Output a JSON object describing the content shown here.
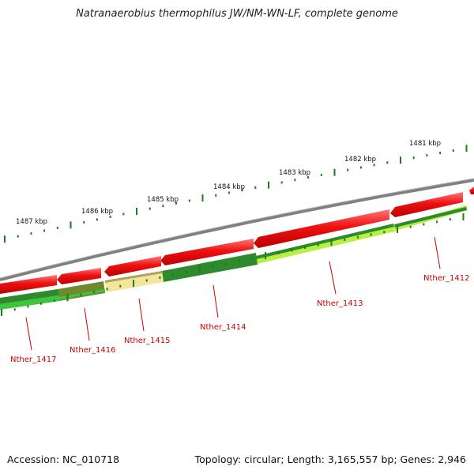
{
  "title": "Natranaerobius thermophilus JW/NM-WN-LF, complete genome",
  "footer": {
    "accession": "Accession: NC_010718",
    "stats": "Topology: circular; Length: 3,165,557 bp; Genes: 2,946"
  },
  "kbp_ticks": [
    "1481 kbp",
    "1482 kbp",
    "1483 kbp",
    "1484 kbp",
    "1485 kbp",
    "1486 kbp",
    "1487 kbp"
  ],
  "genes": [
    {
      "name": "Nther_1412",
      "strand": "reverse",
      "track_color": "#b8ef40"
    },
    {
      "name": "Nther_1413",
      "strand": "reverse",
      "track_color": "#b8ef40"
    },
    {
      "name": "Nther_1414",
      "strand": "reverse",
      "track_color": "#2d8a2d"
    },
    {
      "name": "Nther_1415",
      "strand": "reverse",
      "track_color": "#f3e69a"
    },
    {
      "name": "Nther_1416",
      "strand": "reverse",
      "track_color": "#6f8a2d"
    },
    {
      "name": "Nther_1417",
      "strand": "reverse",
      "track_color": "#3fc43f"
    }
  ],
  "colors": {
    "backbone": "#808080",
    "cds_arrow": "#ee1111",
    "tick": "#1d7a1d",
    "label": "#cc0000"
  }
}
